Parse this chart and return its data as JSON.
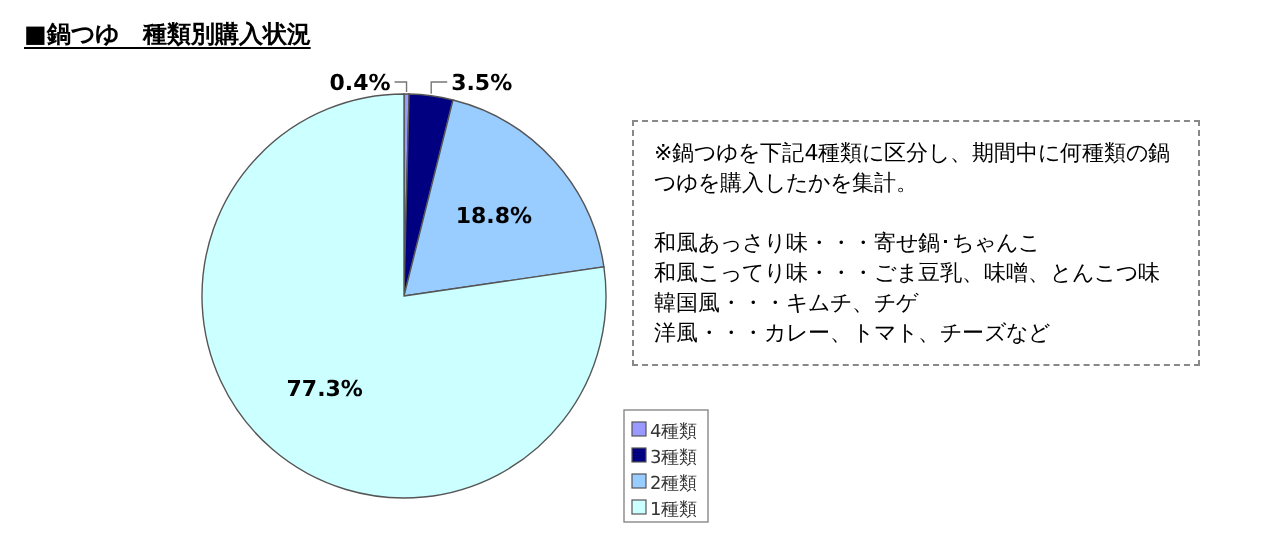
{
  "chart_data": {
    "type": "pie",
    "title": "■鍋つゆ　種類別購入状況",
    "categories": [
      "4種類",
      "3種類",
      "2種類",
      "1種類"
    ],
    "values": [
      0.4,
      3.5,
      18.8,
      77.3
    ],
    "value_labels": [
      "0.4%",
      "3.5%",
      "18.8%",
      "77.3%"
    ],
    "colors": [
      "#9999ff",
      "#000080",
      "#99ccff",
      "#ccffff"
    ],
    "legend": "bottom right",
    "annotations": [
      "※鍋つゆを下記4種類に区分し、期間中に何種類の鍋つゆを購入したかを集計。",
      "和風あっさり味・・・寄せ鍋･ちゃんこ",
      "和風こってり味・・・ごま豆乳、味噌、とんこつ味",
      "韓国風・・・キムチ、チゲ",
      "洋風・・・カレー、トマト、チーズなど"
    ]
  }
}
